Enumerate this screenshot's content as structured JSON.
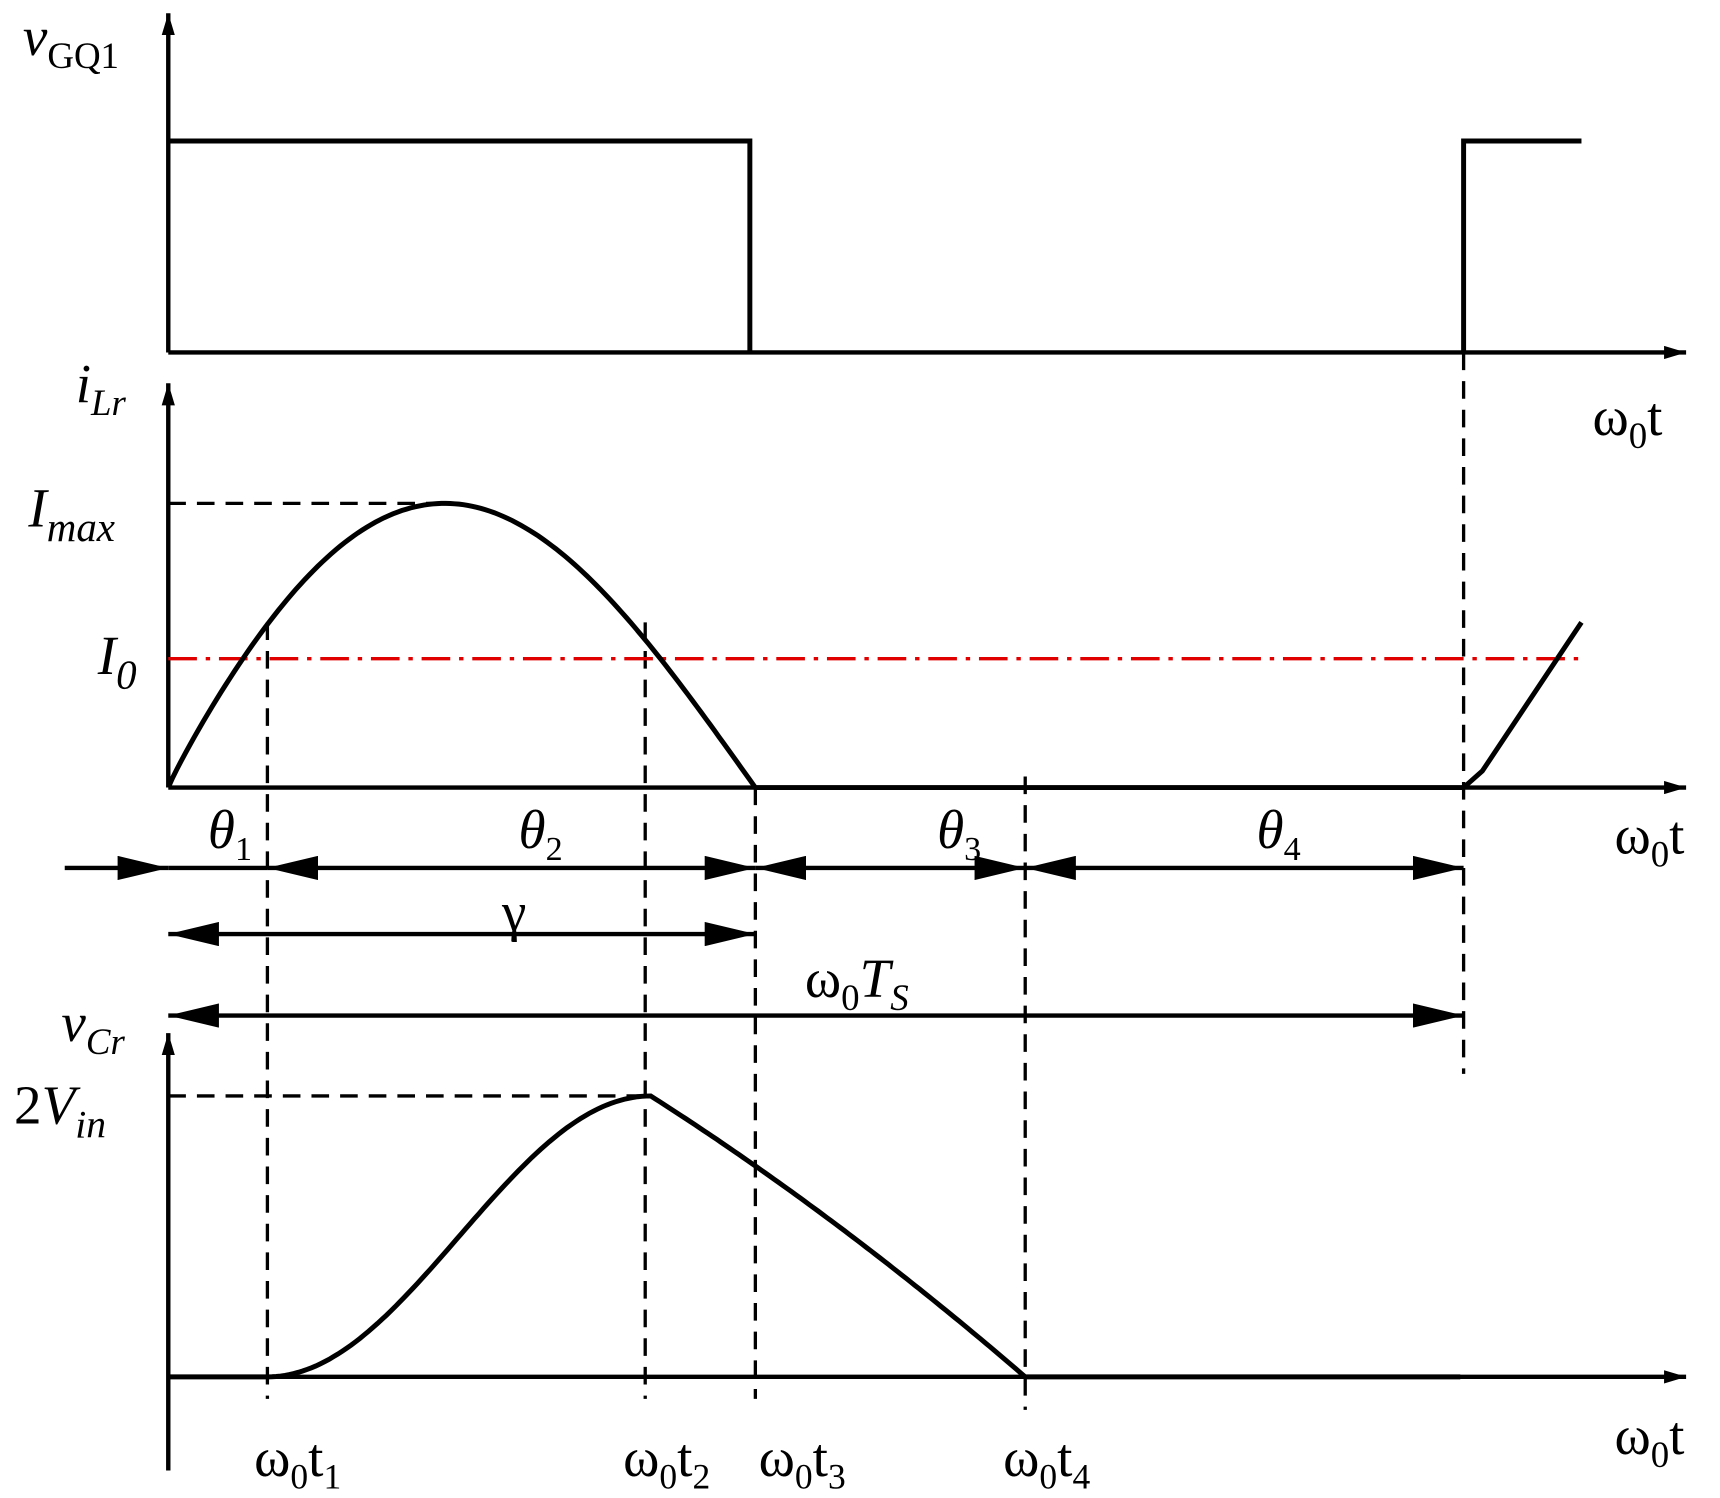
{
  "waveforms": {
    "gate": {
      "y_label": {
        "base": "v",
        "sub": "GQ1"
      },
      "x_label": {
        "base": "ω",
        "sub": "0",
        "tail": "t"
      }
    },
    "current": {
      "y_label": {
        "base": "i",
        "sub": "Lr"
      },
      "x_label": {
        "base": "ω",
        "sub": "0",
        "tail": "t"
      },
      "i_max": {
        "base": "I",
        "sub": "max"
      },
      "i_0": {
        "base": "I",
        "sub": "0"
      }
    },
    "voltage": {
      "y_label": {
        "base": "v",
        "sub": "Cr"
      },
      "x_label": {
        "base": "ω",
        "sub": "0",
        "tail": "t"
      },
      "peak": {
        "coef": "2",
        "base": "V",
        "sub": "in"
      }
    }
  },
  "intervals": [
    {
      "base": "θ",
      "sub": "1"
    },
    {
      "base": "θ",
      "sub": "2"
    },
    {
      "base": "θ",
      "sub": "3"
    },
    {
      "base": "θ",
      "sub": "4"
    }
  ],
  "gamma": "γ",
  "period": {
    "base": "ω",
    "sub": "0",
    "tail": "T",
    "tail_sub": "S"
  },
  "time_marks": [
    {
      "base": "ω",
      "sub": "0",
      "tail": "t",
      "tail_sub": "1"
    },
    {
      "base": "ω",
      "sub": "0",
      "tail": "t",
      "tail_sub": "2"
    },
    {
      "base": "ω",
      "sub": "0",
      "tail": "t",
      "tail_sub": "3"
    },
    {
      "base": "ω",
      "sub": "0",
      "tail": "t",
      "tail_sub": "4"
    }
  ]
}
